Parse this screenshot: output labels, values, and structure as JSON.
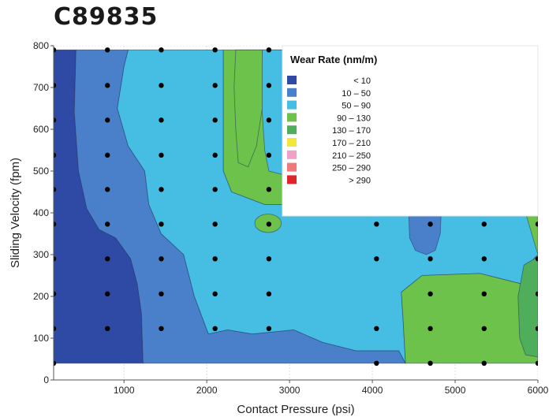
{
  "header": {
    "title": "C89835"
  },
  "chart_data": {
    "type": "heatmap",
    "subtype": "filled-contour",
    "title": "",
    "xlabel": "Contact Pressure (psi)",
    "ylabel": "Sliding Velocity (fpm)",
    "xlim": [
      150,
      6000
    ],
    "ylim": [
      0,
      800
    ],
    "xticks": [
      1000,
      2000,
      3000,
      4000,
      5000,
      6000
    ],
    "xtick_labels": [
      "1000",
      "2000",
      "3000",
      "4000",
      "5000",
      "6000"
    ],
    "yticks": [
      0,
      100,
      200,
      300,
      400,
      500,
      600,
      700,
      800
    ],
    "ytick_labels": [
      "0",
      "100",
      "200",
      "300",
      "400",
      "500",
      "600",
      "700",
      "800"
    ],
    "grid": true,
    "legend": {
      "title": "Wear Rate (nm/m)",
      "placement": "top-right",
      "entries": [
        {
          "label": "<  10",
          "color": "#2f4aa5"
        },
        {
          "label": "10  –  50",
          "color": "#4a7fc9"
        },
        {
          "label": "50  –  90",
          "color": "#46bde3"
        },
        {
          "label": "90  –  130",
          "color": "#6cc24a"
        },
        {
          "label": "130  –  170",
          "color": "#4fae5c"
        },
        {
          "label": "170  –  210",
          "color": "#f5e63a"
        },
        {
          "label": "210  –  250",
          "color": "#f2a0c8"
        },
        {
          "label": "250  –  290",
          "color": "#ee7a7a"
        },
        {
          "label": ">  290",
          "color": "#e0242c"
        }
      ]
    },
    "regions": [
      {
        "band": "< 10",
        "color": "#2f4aa5",
        "polygon": [
          [
            150,
            40
          ],
          [
            1230,
            40
          ],
          [
            1210,
            160
          ],
          [
            1160,
            230
          ],
          [
            1080,
            290
          ],
          [
            900,
            340
          ],
          [
            700,
            360
          ],
          [
            550,
            410
          ],
          [
            450,
            500
          ],
          [
            400,
            640
          ],
          [
            420,
            790
          ],
          [
            150,
            790
          ]
        ]
      },
      {
        "band": "10 – 50",
        "color": "#4a7fc9",
        "polygon": [
          [
            1230,
            40
          ],
          [
            4400,
            40
          ],
          [
            4320,
            70
          ],
          [
            3800,
            70
          ],
          [
            3400,
            90
          ],
          [
            3050,
            120
          ],
          [
            2550,
            110
          ],
          [
            2250,
            120
          ],
          [
            2020,
            110
          ],
          [
            1850,
            200
          ],
          [
            1720,
            300
          ],
          [
            1450,
            350
          ],
          [
            1300,
            420
          ],
          [
            1250,
            500
          ],
          [
            1050,
            560
          ],
          [
            920,
            650
          ],
          [
            1000,
            750
          ],
          [
            1050,
            790
          ],
          [
            420,
            790
          ],
          [
            400,
            640
          ],
          [
            450,
            500
          ],
          [
            550,
            410
          ],
          [
            700,
            360
          ],
          [
            900,
            340
          ],
          [
            1080,
            290
          ],
          [
            1160,
            230
          ],
          [
            1210,
            160
          ]
        ]
      },
      {
        "band": "50 – 90",
        "color": "#46bde3",
        "polygon": [
          [
            1050,
            790
          ],
          [
            1000,
            750
          ],
          [
            920,
            650
          ],
          [
            1050,
            560
          ],
          [
            1250,
            500
          ],
          [
            1300,
            420
          ],
          [
            1450,
            350
          ],
          [
            1720,
            300
          ],
          [
            1850,
            200
          ],
          [
            2020,
            110
          ],
          [
            2250,
            120
          ],
          [
            2550,
            110
          ],
          [
            3050,
            120
          ],
          [
            3400,
            90
          ],
          [
            3800,
            70
          ],
          [
            4320,
            70
          ],
          [
            4400,
            40
          ],
          [
            4370,
            150
          ],
          [
            4350,
            210
          ],
          [
            4600,
            250
          ],
          [
            5300,
            255
          ],
          [
            5800,
            230
          ],
          [
            5950,
            290
          ],
          [
            6000,
            300
          ],
          [
            6000,
            400
          ],
          [
            4200,
            400
          ],
          [
            3700,
            420
          ],
          [
            2700,
            420
          ],
          [
            2300,
            450
          ],
          [
            2200,
            500
          ],
          [
            2200,
            600
          ],
          [
            2200,
            700
          ],
          [
            2200,
            790
          ]
        ]
      },
      {
        "band": "90 – 130",
        "color": "#6cc24a",
        "polygon": [
          [
            2200,
            790
          ],
          [
            2200,
            700
          ],
          [
            2200,
            600
          ],
          [
            2200,
            500
          ],
          [
            2300,
            450
          ],
          [
            2700,
            420
          ],
          [
            3700,
            420
          ],
          [
            3700,
            790
          ]
        ]
      },
      {
        "band": "90 – 130",
        "color": "#6cc24a",
        "polygon": [
          [
            5850,
            400
          ],
          [
            6000,
            400
          ],
          [
            6000,
            300
          ],
          [
            5950,
            290
          ],
          [
            5800,
            230
          ],
          [
            5300,
            255
          ],
          [
            4600,
            250
          ],
          [
            4350,
            210
          ],
          [
            4370,
            150
          ],
          [
            4400,
            40
          ],
          [
            6000,
            40
          ],
          [
            6000,
            300
          ]
        ]
      },
      {
        "band": "10 – 50",
        "color": "#4a7fc9",
        "polygon": [
          [
            4440,
            395
          ],
          [
            4450,
            340
          ],
          [
            4520,
            310
          ],
          [
            4650,
            300
          ],
          [
            4760,
            310
          ],
          [
            4820,
            350
          ],
          [
            4830,
            395
          ]
        ]
      },
      {
        "band": "130 – 170",
        "color": "#4fae5c",
        "polygon": [
          [
            6000,
            295
          ],
          [
            5830,
            275
          ],
          [
            5760,
            200
          ],
          [
            5780,
            100
          ],
          [
            5850,
            60
          ],
          [
            6000,
            55
          ]
        ]
      }
    ],
    "contour_overrides": [
      {
        "band": "90 – 130",
        "color": "#6cc24a",
        "center": [
          2740,
          375
        ],
        "rx": 160,
        "ry": 22
      },
      {
        "band": "50 – 90",
        "color": "#46bde3",
        "polygon": [
          [
            2670,
            790
          ],
          [
            2650,
            700
          ],
          [
            2700,
            550
          ],
          [
            2750,
            500
          ],
          [
            2950,
            490
          ],
          [
            3150,
            500
          ],
          [
            3350,
            510
          ],
          [
            3500,
            560
          ],
          [
            3700,
            640
          ],
          [
            3700,
            790
          ]
        ]
      },
      {
        "band": "90 – 130",
        "color": "#6cc24a",
        "polygon": [
          [
            2350,
            790
          ],
          [
            2330,
            700
          ],
          [
            2350,
            600
          ],
          [
            2380,
            520
          ],
          [
            2500,
            510
          ],
          [
            2600,
            560
          ],
          [
            2670,
            650
          ],
          [
            2670,
            790
          ]
        ]
      }
    ],
    "points": [
      {
        "x": 150,
        "y": 790
      },
      {
        "x": 800,
        "y": 790
      },
      {
        "x": 1450,
        "y": 790
      },
      {
        "x": 2100,
        "y": 790
      },
      {
        "x": 2750,
        "y": 790
      },
      {
        "x": 150,
        "y": 705
      },
      {
        "x": 800,
        "y": 705
      },
      {
        "x": 1450,
        "y": 705
      },
      {
        "x": 2100,
        "y": 705
      },
      {
        "x": 2750,
        "y": 705
      },
      {
        "x": 150,
        "y": 622
      },
      {
        "x": 800,
        "y": 622
      },
      {
        "x": 1450,
        "y": 622
      },
      {
        "x": 2100,
        "y": 622
      },
      {
        "x": 2750,
        "y": 622
      },
      {
        "x": 150,
        "y": 538
      },
      {
        "x": 800,
        "y": 538
      },
      {
        "x": 1450,
        "y": 538
      },
      {
        "x": 2100,
        "y": 538
      },
      {
        "x": 2750,
        "y": 538
      },
      {
        "x": 150,
        "y": 456
      },
      {
        "x": 800,
        "y": 456
      },
      {
        "x": 1450,
        "y": 456
      },
      {
        "x": 2100,
        "y": 456
      },
      {
        "x": 2750,
        "y": 456
      },
      {
        "x": 150,
        "y": 373
      },
      {
        "x": 800,
        "y": 373
      },
      {
        "x": 1450,
        "y": 373
      },
      {
        "x": 2100,
        "y": 373
      },
      {
        "x": 2750,
        "y": 373
      },
      {
        "x": 4050,
        "y": 373
      },
      {
        "x": 4700,
        "y": 373
      },
      {
        "x": 5350,
        "y": 373
      },
      {
        "x": 6000,
        "y": 373
      },
      {
        "x": 150,
        "y": 290
      },
      {
        "x": 800,
        "y": 290
      },
      {
        "x": 1450,
        "y": 290
      },
      {
        "x": 2100,
        "y": 290
      },
      {
        "x": 2750,
        "y": 290
      },
      {
        "x": 4050,
        "y": 290
      },
      {
        "x": 4700,
        "y": 290
      },
      {
        "x": 5350,
        "y": 290
      },
      {
        "x": 6000,
        "y": 290
      },
      {
        "x": 150,
        "y": 206
      },
      {
        "x": 800,
        "y": 206
      },
      {
        "x": 1450,
        "y": 206
      },
      {
        "x": 2100,
        "y": 206
      },
      {
        "x": 2750,
        "y": 206
      },
      {
        "x": 4700,
        "y": 206
      },
      {
        "x": 5350,
        "y": 206
      },
      {
        "x": 6000,
        "y": 206
      },
      {
        "x": 150,
        "y": 123
      },
      {
        "x": 800,
        "y": 123
      },
      {
        "x": 1450,
        "y": 123
      },
      {
        "x": 2100,
        "y": 123
      },
      {
        "x": 2750,
        "y": 123
      },
      {
        "x": 4050,
        "y": 123
      },
      {
        "x": 4700,
        "y": 123
      },
      {
        "x": 5350,
        "y": 123
      },
      {
        "x": 6000,
        "y": 123
      },
      {
        "x": 150,
        "y": 40
      },
      {
        "x": 4050,
        "y": 40
      },
      {
        "x": 4700,
        "y": 40
      },
      {
        "x": 5350,
        "y": 40
      },
      {
        "x": 6000,
        "y": 40
      }
    ]
  }
}
